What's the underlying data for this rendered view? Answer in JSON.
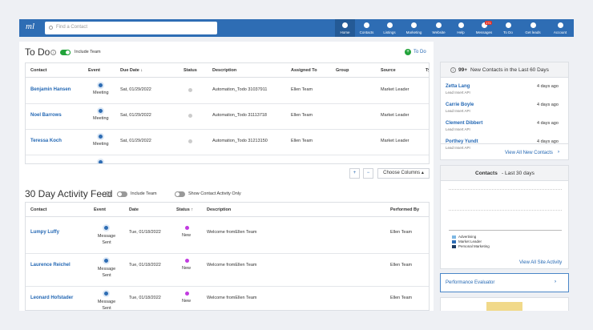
{
  "nav": {
    "logo": "ml",
    "search_placeholder": "Find a Contact",
    "items": [
      "Home",
      "Contacts",
      "Listings",
      "Marketing",
      "Website",
      "Help",
      "Messages",
      "To Do",
      "Get leads",
      "Account"
    ],
    "messages_badge": "171"
  },
  "todo": {
    "title": "To Do",
    "include_team": "Include Team",
    "add_link": "To Do",
    "columns": [
      "Contact",
      "Event",
      "Due Date ↓",
      "Status",
      "Description",
      "Assigned To",
      "Group",
      "Source",
      "Ty"
    ],
    "rows": [
      {
        "contact": "Benjamin Hansen",
        "event": "Meeting",
        "due_date": "Sat, 01/29/2022",
        "description": "Automation_Todo 31037911",
        "assigned_to": "Ellen Team",
        "source": "Market Leader"
      },
      {
        "contact": "Noel Barrows",
        "event": "Meeting",
        "due_date": "Sat, 01/29/2022",
        "description": "Automation_Todo 31113718",
        "assigned_to": "Ellen Team",
        "source": "Market Leader"
      },
      {
        "contact": "Teressa Koch",
        "event": "Meeting",
        "due_date": "Sat, 01/29/2022",
        "description": "Automation_Todo 31213150",
        "assigned_to": "Ellen Team",
        "source": "Market Leader"
      }
    ],
    "add_button": "+",
    "remove_button": "−",
    "choose_columns": "Choose Columns ▴"
  },
  "activity": {
    "title": "30 Day Activity Feed",
    "include_team": "Include Team",
    "contact_only": "Show Contact Activity Only",
    "columns": [
      "Contact",
      "Event",
      "Date",
      "Status ↑",
      "Description",
      "Performed By"
    ],
    "rows": [
      {
        "contact": "Lumpy Luffy",
        "event": "Message Sent",
        "date": "Tue, 01/18/2022",
        "status": "New",
        "description": "Welcome fromEllen Team",
        "performed_by": "Ellen Team"
      },
      {
        "contact": "Laurence Reichel",
        "event": "Message Sent",
        "date": "Tue, 01/18/2022",
        "status": "New",
        "description": "Welcome fromEllen Team",
        "performed_by": "Ellen Team"
      },
      {
        "contact": "Leonard Hofstader",
        "event": "Message Sent",
        "date": "Tue, 01/18/2022",
        "status": "New",
        "description": "Welcome fromEllen Team",
        "performed_by": "Ellen Team"
      }
    ]
  },
  "new_contacts": {
    "count": "99+",
    "title": "New Contacts in the Last 60 Days",
    "items": [
      {
        "name": "Zetta Lang",
        "source": "Lead Insert API",
        "age": "4 days ago"
      },
      {
        "name": "Carrie Boyle",
        "source": "Lead Insert API",
        "age": "4 days ago"
      },
      {
        "name": "Clement Dibbert",
        "source": "Lead Insert API",
        "age": "4 days ago"
      },
      {
        "name": "Porthey Yundt",
        "source": "Lead Insert API",
        "age": "4 days ago"
      }
    ],
    "view_all": "View All New Contacts"
  },
  "contacts_chart": {
    "title": "Contacts",
    "subtitle": "- Last 30 days",
    "legend": [
      {
        "name": "Advertising",
        "color": "#7db7e3"
      },
      {
        "name": "Market Leader",
        "color": "#2f6eb6"
      },
      {
        "name": "Personal Marketing",
        "color": "#1e3a60"
      }
    ],
    "view_all": "View All Site Activity"
  },
  "performance": {
    "title": "Performance Evaluator"
  }
}
